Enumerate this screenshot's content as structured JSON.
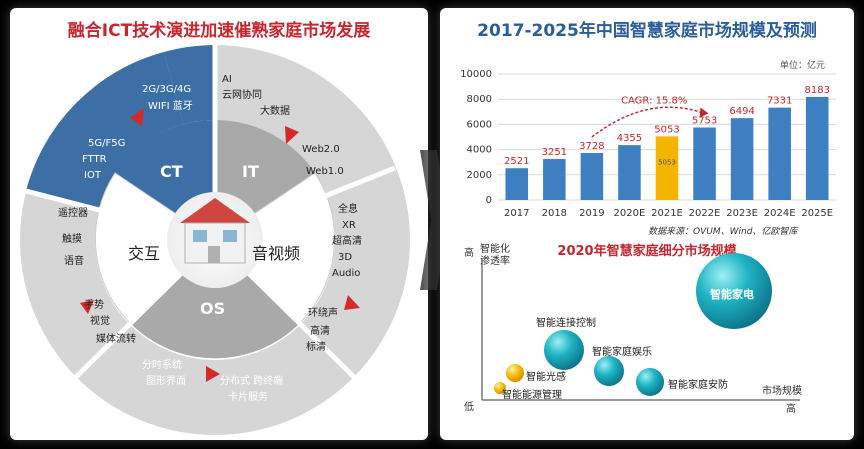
{
  "left": {
    "title": "融合ICT技术演进加速催熟家庭市场发展",
    "segments": {
      "ct": "CT",
      "it": "IT",
      "av": "音视频",
      "os": "OS",
      "interact": "交互"
    },
    "ring_labels": {
      "ct_gen": "2G/3G/4G",
      "ct_wifi": "WIFI 蓝牙",
      "ct_5g": "5G/F5G",
      "ct_fttr": "FTTR",
      "ct_iot": "IOT",
      "it_ai": "AI",
      "it_cloud": "云网协同",
      "it_bigdata": "大数据",
      "it_web2": "Web2.0",
      "it_web1": "Web1.0",
      "av_full": "全息",
      "av_xr": "XR",
      "av_uhd": "超高清",
      "av_3d": "3D",
      "av_audio": "Audio",
      "av_surround": "环绕声",
      "av_hd": "高清",
      "av_sd": "标清",
      "os_timeshare": "分时系统",
      "os_gui": "图形界面",
      "os_dist": "分布式 跨终端",
      "os_card": "卡片服务",
      "in_remote": "遥控器",
      "in_touch": "触摸",
      "in_voice": "语音",
      "in_gesture": "手势",
      "in_vision": "视觉",
      "in_media": "媒体流转"
    }
  },
  "right": {
    "title": "2017-2025年中国智慧家庭市场规模及预测",
    "unit": "单位：亿元",
    "cagr": "CAGR: 15.8%",
    "highlight_label": "5053",
    "source": "数据来源：OVUM、Wind、亿欧智库",
    "bubble_title": "2020年智慧家庭细分市场规模",
    "y_axis_label": "智能化渗透率",
    "x_axis_label": "市场规模",
    "low": "低",
    "high_y": "高",
    "high_x": "高",
    "bubbles": {
      "appliance": "智能家电",
      "connect": "智能连接控制",
      "entertain": "智能家庭娱乐",
      "security": "智能家庭安防",
      "light": "智能光感",
      "energy": "智能能源管理"
    }
  },
  "chart_data": {
    "type": "bar",
    "title": "2017-2025年中国智慧家庭市场规模及预测",
    "categories": [
      "2017",
      "2018",
      "2019",
      "2020E",
      "2021E",
      "2022E",
      "2023E",
      "2024E",
      "2025E"
    ],
    "values": [
      2521,
      3251,
      3728,
      4355,
      5053,
      5753,
      6494,
      7331,
      8183
    ],
    "ylim": [
      0,
      10000
    ],
    "yticks": [
      0,
      2000,
      4000,
      6000,
      8000,
      10000
    ],
    "ylabel": "单位：亿元",
    "colors": {
      "bar": "#3d7fc1",
      "highlight": "#f5b400",
      "value_label": "#c0282d",
      "grid": "#d9d9d9"
    },
    "highlight_index": 4
  }
}
